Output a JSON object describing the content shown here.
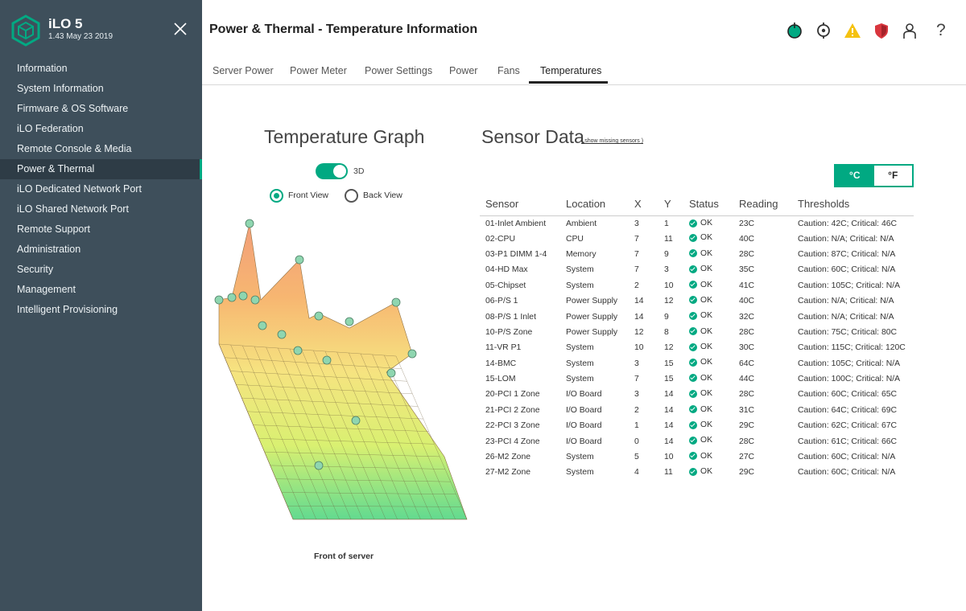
{
  "app": {
    "title": "iLO 5",
    "version": "1.43 May 23 2019"
  },
  "sidebar": {
    "items": [
      {
        "label": "Information"
      },
      {
        "label": "System Information"
      },
      {
        "label": "Firmware & OS Software"
      },
      {
        "label": "iLO Federation"
      },
      {
        "label": "Remote Console & Media"
      },
      {
        "label": "Power & Thermal",
        "active": true
      },
      {
        "label": "iLO Dedicated Network Port"
      },
      {
        "label": "iLO Shared Network Port"
      },
      {
        "label": "Remote Support"
      },
      {
        "label": "Administration"
      },
      {
        "label": "Security"
      },
      {
        "label": "Management"
      },
      {
        "label": "Intelligent Provisioning"
      }
    ]
  },
  "header": {
    "title": "Power & Thermal - Temperature Information",
    "icons": [
      "power-status-icon",
      "locate-icon",
      "warning-icon",
      "security-shield-icon",
      "user-icon",
      "help-icon"
    ],
    "help_glyph": "?"
  },
  "tabs": [
    {
      "label": "Server Power"
    },
    {
      "label": "Power Meter"
    },
    {
      "label": "Power Settings"
    },
    {
      "label": "Power"
    },
    {
      "label": "Fans"
    },
    {
      "label": "Temperatures",
      "active": true
    }
  ],
  "graph": {
    "title": "Temperature Graph",
    "toggle_label": "3D",
    "toggle_on": true,
    "views": [
      {
        "label": "Front View",
        "selected": true
      },
      {
        "label": "Back View",
        "selected": false
      }
    ],
    "footer": "Front of server"
  },
  "sensor_data": {
    "title": "Sensor Data",
    "missing_link": "( show missing sensors )",
    "units": {
      "celsius": "°C",
      "fahrenheit": "°F",
      "selected": "celsius"
    },
    "columns": [
      "Sensor",
      "Location",
      "X",
      "Y",
      "Status",
      "Reading",
      "Thresholds"
    ],
    "rows": [
      {
        "sensor": "01-Inlet Ambient",
        "location": "Ambient",
        "x": "3",
        "y": "1",
        "status": "OK",
        "reading": "23C",
        "thresholds": "Caution: 42C; Critical: 46C"
      },
      {
        "sensor": "02-CPU",
        "location": "CPU",
        "x": "7",
        "y": "11",
        "status": "OK",
        "reading": "40C",
        "thresholds": "Caution: N/A; Critical: N/A"
      },
      {
        "sensor": "03-P1 DIMM 1-4",
        "location": "Memory",
        "x": "7",
        "y": "9",
        "status": "OK",
        "reading": "28C",
        "thresholds": "Caution: 87C; Critical: N/A"
      },
      {
        "sensor": "04-HD Max",
        "location": "System",
        "x": "7",
        "y": "3",
        "status": "OK",
        "reading": "35C",
        "thresholds": "Caution: 60C; Critical: N/A"
      },
      {
        "sensor": "05-Chipset",
        "location": "System",
        "x": "2",
        "y": "10",
        "status": "OK",
        "reading": "41C",
        "thresholds": "Caution: 105C; Critical: N/A"
      },
      {
        "sensor": "06-P/S 1",
        "location": "Power Supply",
        "x": "14",
        "y": "12",
        "status": "OK",
        "reading": "40C",
        "thresholds": "Caution: N/A; Critical: N/A"
      },
      {
        "sensor": "08-P/S 1 Inlet",
        "location": "Power Supply",
        "x": "14",
        "y": "9",
        "status": "OK",
        "reading": "32C",
        "thresholds": "Caution: N/A; Critical: N/A"
      },
      {
        "sensor": "10-P/S Zone",
        "location": "Power Supply",
        "x": "12",
        "y": "8",
        "status": "OK",
        "reading": "28C",
        "thresholds": "Caution: 75C; Critical: 80C"
      },
      {
        "sensor": "11-VR P1",
        "location": "System",
        "x": "10",
        "y": "12",
        "status": "OK",
        "reading": "30C",
        "thresholds": "Caution: 115C; Critical: 120C"
      },
      {
        "sensor": "14-BMC",
        "location": "System",
        "x": "3",
        "y": "15",
        "status": "OK",
        "reading": "64C",
        "thresholds": "Caution: 105C; Critical: N/A"
      },
      {
        "sensor": "15-LOM",
        "location": "System",
        "x": "7",
        "y": "15",
        "status": "OK",
        "reading": "44C",
        "thresholds": "Caution: 100C; Critical: N/A"
      },
      {
        "sensor": "20-PCI 1 Zone",
        "location": "I/O Board",
        "x": "3",
        "y": "14",
        "status": "OK",
        "reading": "28C",
        "thresholds": "Caution: 60C; Critical: 65C"
      },
      {
        "sensor": "21-PCI 2 Zone",
        "location": "I/O Board",
        "x": "2",
        "y": "14",
        "status": "OK",
        "reading": "31C",
        "thresholds": "Caution: 64C; Critical: 69C"
      },
      {
        "sensor": "22-PCI 3 Zone",
        "location": "I/O Board",
        "x": "1",
        "y": "14",
        "status": "OK",
        "reading": "29C",
        "thresholds": "Caution: 62C; Critical: 67C"
      },
      {
        "sensor": "23-PCI 4 Zone",
        "location": "I/O Board",
        "x": "0",
        "y": "14",
        "status": "OK",
        "reading": "28C",
        "thresholds": "Caution: 61C; Critical: 66C"
      },
      {
        "sensor": "26-M2 Zone",
        "location": "System",
        "x": "5",
        "y": "10",
        "status": "OK",
        "reading": "27C",
        "thresholds": "Caution: 60C; Critical: N/A"
      },
      {
        "sensor": "27-M2 Zone",
        "location": "System",
        "x": "4",
        "y": "11",
        "status": "OK",
        "reading": "29C",
        "thresholds": "Caution: 60C; Critical: N/A"
      }
    ]
  },
  "colors": {
    "accent": "#01a982",
    "sidebar": "#3e4f5b",
    "warning": "#f5c211",
    "alert": "#d9363e"
  }
}
